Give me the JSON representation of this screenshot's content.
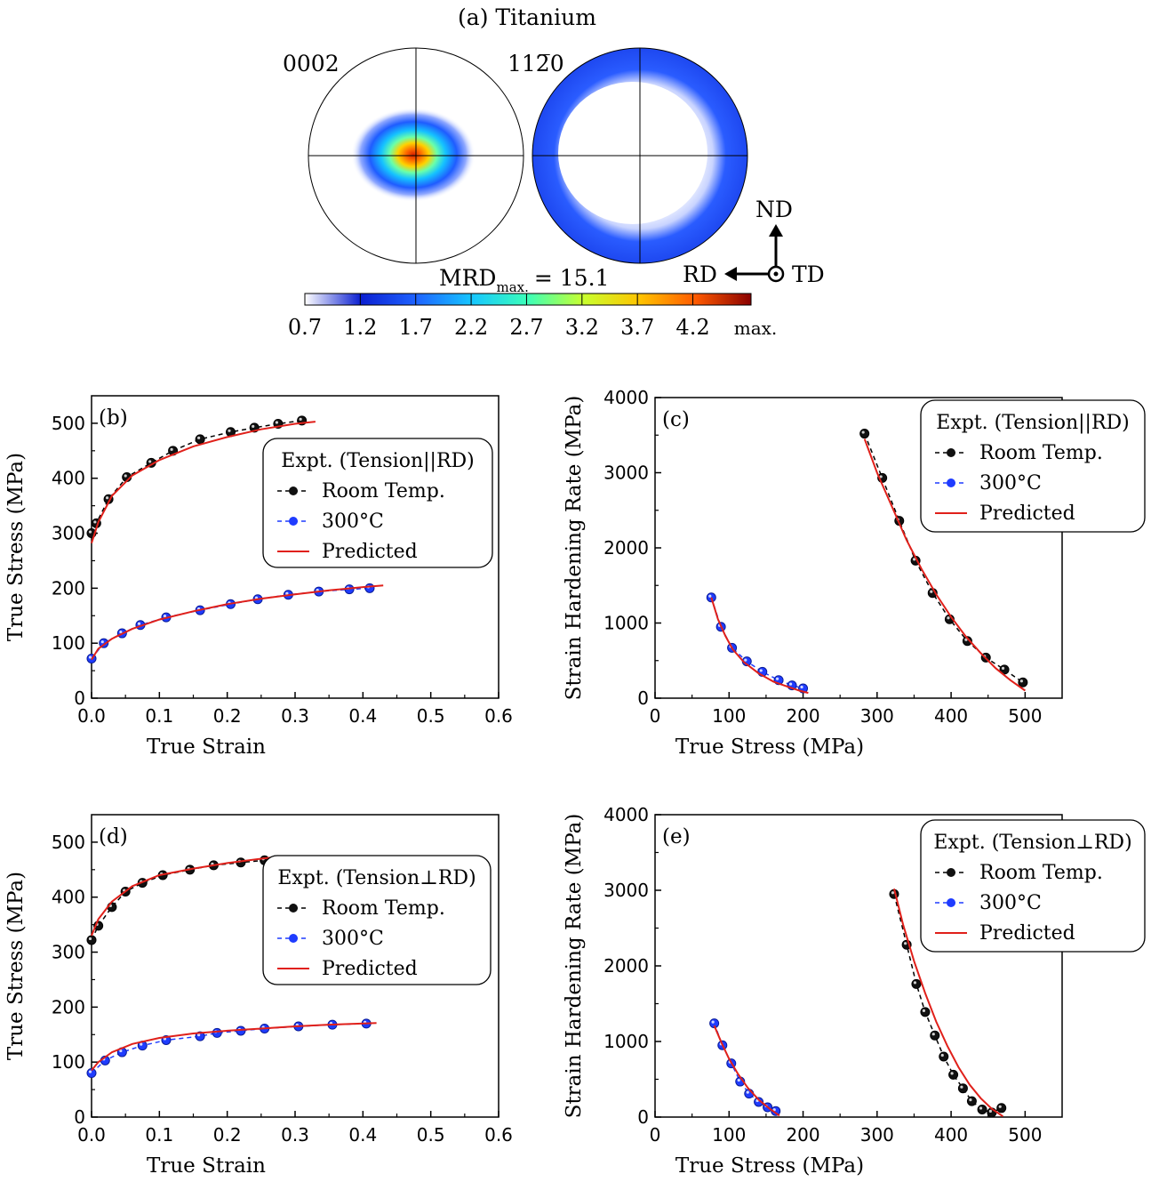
{
  "figure": {
    "panel_a": {
      "title": "(a) Titanium",
      "pole_figures": [
        {
          "label": "0002"
        },
        {
          "label": "112̅0"
        }
      ],
      "mrd_label": "MRD",
      "mrd_sub": "max.",
      "mrd_value": "= 15.1",
      "colorbar_ticks": [
        "0.7",
        "1.2",
        "1.7",
        "2.2",
        "2.7",
        "3.2",
        "3.7",
        "4.2",
        "max."
      ],
      "colorbar_colors": [
        "#ffffff",
        "#0b1fd1",
        "#1e63ff",
        "#16c7ff",
        "#3cffb8",
        "#c9ff2e",
        "#ffc400",
        "#ff5a00",
        "#8a0000"
      ],
      "axes_labels": {
        "nd": "ND",
        "rd": "RD",
        "td": "TD"
      }
    }
  },
  "chart_data": [
    {
      "id": "b",
      "type": "line",
      "panel_label": "(b)",
      "xlabel": "True Strain",
      "ylabel": "True Stress (MPa)",
      "xlim": [
        0,
        0.6
      ],
      "ylim": [
        0,
        550
      ],
      "xticks": [
        0.0,
        0.1,
        0.2,
        0.3,
        0.4,
        0.5,
        0.6
      ],
      "xtick_labels": [
        "0.0",
        "0.1",
        "0.2",
        "0.3",
        "0.4",
        "0.5",
        "0.6"
      ],
      "yticks": [
        0,
        100,
        200,
        300,
        400,
        500
      ],
      "ytick_labels": [
        "0",
        "100",
        "200",
        "300",
        "400",
        "500"
      ],
      "legend": {
        "title": "Expt. (Tension||RD)",
        "entries": [
          "Room Temp.",
          "300°C",
          "Predicted"
        ],
        "position": "right"
      },
      "series": [
        {
          "name": "Room Temp.",
          "style": "expt",
          "color": "#000000",
          "x": [
            0.0,
            0.007,
            0.025,
            0.052,
            0.088,
            0.12,
            0.16,
            0.205,
            0.24,
            0.275,
            0.31
          ],
          "y": [
            300,
            318,
            362,
            402,
            428,
            450,
            471,
            484,
            492,
            499,
            505
          ]
        },
        {
          "name": "300°C",
          "style": "expt",
          "color": "#1f3cff",
          "x": [
            0.0,
            0.018,
            0.045,
            0.072,
            0.11,
            0.16,
            0.205,
            0.245,
            0.29,
            0.335,
            0.38,
            0.41
          ],
          "y": [
            72,
            100,
            118,
            133,
            147,
            160,
            171,
            180,
            188,
            194,
            198,
            200
          ]
        },
        {
          "name": "Predicted",
          "style": "model",
          "color": "#e0201a",
          "x": [
            0.0,
            0.01,
            0.03,
            0.06,
            0.1,
            0.15,
            0.2,
            0.25,
            0.3,
            0.33
          ],
          "y": [
            282,
            320,
            368,
            405,
            433,
            458,
            475,
            489,
            499,
            503
          ]
        },
        {
          "name": "Predicted",
          "style": "model",
          "color": "#e0201a",
          "x": [
            0.0,
            0.01,
            0.03,
            0.06,
            0.1,
            0.15,
            0.2,
            0.25,
            0.3,
            0.35,
            0.4,
            0.43
          ],
          "y": [
            70,
            90,
            108,
            126,
            143,
            158,
            171,
            181,
            189,
            196,
            202,
            205
          ]
        }
      ]
    },
    {
      "id": "c",
      "type": "line",
      "panel_label": "(c)",
      "xlabel": "True Stress (MPa)",
      "ylabel": "Strain Hardening Rate (MPa)",
      "xlim": [
        0,
        550
      ],
      "ylim": [
        0,
        4000
      ],
      "xticks": [
        0,
        100,
        200,
        300,
        400,
        500
      ],
      "xtick_labels": [
        "0",
        "100",
        "200",
        "300",
        "400",
        "500"
      ],
      "yticks": [
        0,
        1000,
        2000,
        3000,
        4000
      ],
      "ytick_labels": [
        "0",
        "1000",
        "2000",
        "3000",
        "4000"
      ],
      "legend": {
        "title": "Expt. (Tension||RD)",
        "entries": [
          "Room Temp.",
          "300°C",
          "Predicted"
        ],
        "position": "top-right"
      },
      "series": [
        {
          "name": "Room Temp.",
          "style": "expt",
          "color": "#000000",
          "x": [
            283,
            307,
            330,
            352,
            375,
            398,
            422,
            447,
            472,
            497
          ],
          "y": [
            3520,
            2930,
            2360,
            1830,
            1400,
            1050,
            760,
            540,
            380,
            210
          ]
        },
        {
          "name": "300°C",
          "style": "expt",
          "color": "#1f3cff",
          "x": [
            76,
            89,
            104,
            124,
            145,
            167,
            185,
            200
          ],
          "y": [
            1340,
            950,
            670,
            490,
            350,
            240,
            170,
            130
          ]
        },
        {
          "name": "Predicted",
          "style": "model",
          "color": "#e0201a",
          "x": [
            283,
            300,
            320,
            340,
            360,
            380,
            400,
            420,
            440,
            460,
            480,
            500
          ],
          "y": [
            3450,
            3000,
            2550,
            2100,
            1720,
            1380,
            1080,
            820,
            600,
            400,
            240,
            100
          ]
        },
        {
          "name": "Predicted",
          "style": "model",
          "color": "#e0201a",
          "x": [
            76,
            85,
            95,
            105,
            120,
            140,
            160,
            180,
            195,
            207
          ],
          "y": [
            1340,
            1050,
            830,
            650,
            480,
            330,
            220,
            150,
            100,
            70
          ]
        }
      ]
    },
    {
      "id": "d",
      "type": "line",
      "panel_label": "(d)",
      "xlabel": "True Strain",
      "ylabel": "True Stress (MPa)",
      "xlim": [
        0,
        0.6
      ],
      "ylim": [
        0,
        550
      ],
      "xticks": [
        0.0,
        0.1,
        0.2,
        0.3,
        0.4,
        0.5,
        0.6
      ],
      "xtick_labels": [
        "0.0",
        "0.1",
        "0.2",
        "0.3",
        "0.4",
        "0.5",
        "0.6"
      ],
      "yticks": [
        0,
        100,
        200,
        300,
        400,
        500
      ],
      "ytick_labels": [
        "0",
        "100",
        "200",
        "300",
        "400",
        "500"
      ],
      "legend": {
        "title": "Expt. (Tension⊥RD)",
        "entries": [
          "Room Temp.",
          "300°C",
          "Predicted"
        ],
        "position": "right"
      },
      "series": [
        {
          "name": "Room Temp.",
          "style": "expt",
          "color": "#000000",
          "x": [
            0.0,
            0.01,
            0.03,
            0.05,
            0.075,
            0.105,
            0.145,
            0.18,
            0.22,
            0.255
          ],
          "y": [
            322,
            348,
            382,
            410,
            426,
            440,
            450,
            458,
            463,
            467
          ]
        },
        {
          "name": "300°C",
          "style": "expt",
          "color": "#1f3cff",
          "x": [
            0.0,
            0.02,
            0.045,
            0.075,
            0.11,
            0.16,
            0.185,
            0.22,
            0.255,
            0.305,
            0.355,
            0.405
          ],
          "y": [
            80,
            103,
            118,
            130,
            140,
            147,
            153,
            157,
            161,
            165,
            168,
            170
          ]
        },
        {
          "name": "Predicted",
          "style": "model",
          "color": "#e0201a",
          "x": [
            0.0,
            0.01,
            0.03,
            0.06,
            0.1,
            0.15,
            0.2,
            0.25,
            0.28
          ],
          "y": [
            330,
            360,
            392,
            420,
            440,
            452,
            462,
            470,
            474
          ]
        },
        {
          "name": "Predicted",
          "style": "model",
          "color": "#e0201a",
          "x": [
            0.0,
            0.01,
            0.03,
            0.06,
            0.1,
            0.15,
            0.2,
            0.25,
            0.3,
            0.35,
            0.42
          ],
          "y": [
            85,
            100,
            118,
            133,
            144,
            152,
            157,
            161,
            165,
            168,
            171
          ]
        }
      ]
    },
    {
      "id": "e",
      "type": "line",
      "panel_label": "(e)",
      "xlabel": "True Stress (MPa)",
      "ylabel": "Strain Hardening Rate (MPa)",
      "xlim": [
        0,
        550
      ],
      "ylim": [
        0,
        4000
      ],
      "xticks": [
        0,
        100,
        200,
        300,
        400,
        500
      ],
      "xtick_labels": [
        "0",
        "100",
        "200",
        "300",
        "400",
        "500"
      ],
      "yticks": [
        0,
        1000,
        2000,
        3000,
        4000
      ],
      "ytick_labels": [
        "0",
        "1000",
        "2000",
        "3000",
        "4000"
      ],
      "legend": {
        "title": "Expt. (Tension⊥RD)",
        "entries": [
          "Room Temp.",
          "300°C",
          "Predicted"
        ],
        "position": "top-right"
      },
      "series": [
        {
          "name": "Room Temp.",
          "style": "expt",
          "color": "#000000",
          "x": [
            323,
            340,
            353,
            365,
            378,
            390,
            403,
            416,
            428,
            442,
            455,
            468
          ],
          "y": [
            2950,
            2280,
            1760,
            1390,
            1080,
            800,
            560,
            380,
            210,
            100,
            60,
            120
          ]
        },
        {
          "name": "300°C",
          "style": "expt",
          "color": "#1f3cff",
          "x": [
            80,
            91,
            103,
            115,
            127,
            140,
            152,
            163
          ],
          "y": [
            1240,
            950,
            710,
            470,
            310,
            200,
            130,
            80
          ]
        },
        {
          "name": "Predicted",
          "style": "model",
          "color": "#e0201a",
          "x": [
            323,
            335,
            350,
            365,
            380,
            395,
            410,
            425,
            440,
            455,
            470
          ],
          "y": [
            3020,
            2550,
            2060,
            1640,
            1260,
            940,
            660,
            430,
            250,
            110,
            10
          ]
        },
        {
          "name": "Predicted",
          "style": "model",
          "color": "#e0201a",
          "x": [
            80,
            90,
            100,
            112,
            125,
            140,
            155,
            168
          ],
          "y": [
            1210,
            980,
            770,
            570,
            390,
            230,
            110,
            20
          ]
        }
      ]
    }
  ]
}
